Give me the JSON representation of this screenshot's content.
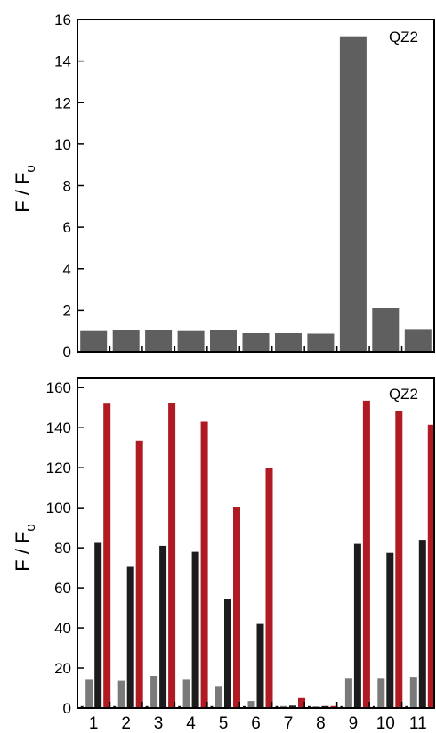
{
  "chart_data": [
    {
      "type": "bar",
      "legend_text": "QZ2",
      "ylabel": "F / F",
      "ylabel_subscript": "o",
      "ylim": [
        0,
        16
      ],
      "yticks": [
        "0",
        "2",
        "4",
        "6",
        "8",
        "10",
        "12",
        "14",
        "16"
      ],
      "categories": [
        "1",
        "2",
        "3",
        "4",
        "5",
        "6",
        "7",
        "8",
        "9",
        "10",
        "11"
      ],
      "series": [
        {
          "values": [
            1.0,
            1.05,
            1.05,
            1.0,
            1.05,
            0.9,
            0.9,
            0.88,
            15.2,
            2.1,
            1.1
          ],
          "color": "#5f5f5f"
        }
      ]
    },
    {
      "type": "bar",
      "legend_text": "QZ2",
      "ylabel": "F / F",
      "ylabel_subscript": "o",
      "ylim": [
        0,
        165
      ],
      "yticks": [
        "0",
        "20",
        "40",
        "60",
        "80",
        "100",
        "120",
        "140",
        "160"
      ],
      "categories": [
        "1",
        "2",
        "3",
        "4",
        "5",
        "6",
        "7",
        "8",
        "9",
        "10",
        "11"
      ],
      "series": [
        {
          "values": [
            1,
            1,
            1,
            1,
            1,
            1,
            1,
            1,
            1,
            1,
            1
          ],
          "color": "#1a1a1a"
        },
        {
          "values": [
            14.5,
            13.5,
            16,
            14.5,
            11,
            3.5,
            1,
            0.8,
            15,
            15,
            15.5
          ],
          "color": "#7a7a7a"
        },
        {
          "values": [
            82.5,
            70.5,
            81,
            78,
            54.5,
            42,
            1.2,
            1,
            82,
            77.5,
            84
          ],
          "color": "#1c1c1c"
        },
        {
          "values": [
            152,
            133.5,
            152.5,
            143,
            100.5,
            120,
            5,
            1,
            153.5,
            148.5,
            141.5
          ],
          "color": "#b01a22"
        }
      ]
    }
  ]
}
